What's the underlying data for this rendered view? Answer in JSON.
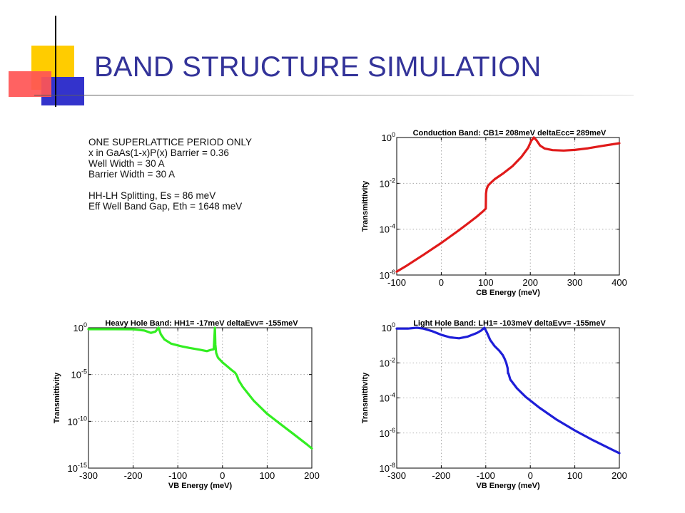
{
  "slide": {
    "title": "BAND STRUCTURE SIMULATION",
    "info_lines": [
      "ONE SUPERLATTICE PERIOD ONLY",
      "x in GaAs(1-x)P(x) Barrier = 0.36",
      "Well Width = 30 A",
      "Barrier Width = 30 A",
      "",
      "HH-LH Splitting, Es = 86 meV",
      "Eff Well Band Gap, Eth = 1648 meV"
    ]
  },
  "chart_data": [
    {
      "type": "line",
      "title": "Conduction Band: CB1= 208meV  deltaEcc= 289meV",
      "xlabel": "CB Energy (meV)",
      "ylabel": "Transmittivity",
      "xlim": [
        -100,
        400
      ],
      "xticks": [
        -100,
        0,
        100,
        200,
        300,
        400
      ],
      "y_log_exponent_range": [
        -6,
        0
      ],
      "yticks": [
        {
          "base": "10",
          "exp": "0"
        },
        {
          "base": "10",
          "exp": "-2"
        },
        {
          "base": "10",
          "exp": "-4"
        },
        {
          "base": "10",
          "exp": "-6"
        }
      ],
      "grid": true,
      "color": "#e01a1a",
      "series": [
        {
          "x": [
            -100,
            -80,
            -60,
            -40,
            -20,
            0,
            20,
            40,
            60,
            80,
            95,
            100,
            100.5,
            102,
            105,
            110,
            120,
            140,
            160,
            180,
            195,
            202,
            208,
            214,
            222,
            232,
            250,
            275,
            300,
            330,
            360,
            400
          ],
          "log10_y": [
            -5.85,
            -5.62,
            -5.37,
            -5.12,
            -4.86,
            -4.6,
            -4.32,
            -4.04,
            -3.75,
            -3.45,
            -3.2,
            -3.1,
            -2.45,
            -2.25,
            -2.1,
            -2.0,
            -1.82,
            -1.55,
            -1.25,
            -0.85,
            -0.45,
            -0.15,
            0.0,
            -0.12,
            -0.35,
            -0.48,
            -0.55,
            -0.57,
            -0.54,
            -0.47,
            -0.37,
            -0.25
          ]
        }
      ]
    },
    {
      "type": "line",
      "title": "Heavy Hole Band: HH1= -17meV  deltaEvv= -155meV",
      "xlabel": "VB Energy (meV)",
      "ylabel": "Transmittivity",
      "xlim": [
        -300,
        200
      ],
      "xticks": [
        -300,
        -200,
        -100,
        0,
        100,
        200
      ],
      "y_log_exponent_range": [
        -15,
        0
      ],
      "yticks": [
        {
          "base": "10",
          "exp": "0"
        },
        {
          "base": "10",
          "exp": "-5"
        },
        {
          "base": "10",
          "exp": "-10"
        },
        {
          "base": "10",
          "exp": "-15"
        }
      ],
      "grid": true,
      "color": "#33ee22",
      "series": [
        {
          "x": [
            -300,
            -240,
            -200,
            -175,
            -160,
            -150,
            -143,
            -138,
            -130,
            -115,
            -95,
            -75,
            -50,
            -35,
            -25,
            -19.5,
            -17,
            -16,
            -14,
            -10,
            0,
            10,
            20,
            28,
            31,
            33,
            36,
            45,
            70,
            100,
            130,
            160,
            190,
            200
          ],
          "log10_y": [
            -0.15,
            -0.15,
            -0.16,
            -0.3,
            -0.55,
            -0.4,
            0.0,
            -0.7,
            -1.25,
            -1.7,
            -1.95,
            -2.15,
            -2.35,
            -2.5,
            -2.35,
            -2.3,
            0.0,
            -1.8,
            -2.7,
            -3.2,
            -3.7,
            -4.1,
            -4.5,
            -4.8,
            -5.0,
            -5.2,
            -5.6,
            -6.3,
            -7.8,
            -9.2,
            -10.3,
            -11.4,
            -12.5,
            -12.9
          ]
        }
      ]
    },
    {
      "type": "line",
      "title": "Light Hole Band: LH1= -103meV  deltaEvv= -155meV",
      "xlabel": "VB Energy (meV)",
      "ylabel": "Transmittivity",
      "xlim": [
        -300,
        200
      ],
      "xticks": [
        -300,
        -200,
        -100,
        0,
        100,
        200
      ],
      "y_log_exponent_range": [
        -8,
        0
      ],
      "yticks": [
        {
          "base": "10",
          "exp": "0"
        },
        {
          "base": "10",
          "exp": "-2"
        },
        {
          "base": "10",
          "exp": "-4"
        },
        {
          "base": "10",
          "exp": "-6"
        },
        {
          "base": "10",
          "exp": "-8"
        }
      ],
      "grid": true,
      "color": "#1e1ed8",
      "series": [
        {
          "x": [
            -300,
            -275,
            -255,
            -240,
            -220,
            -200,
            -180,
            -160,
            -140,
            -120,
            -110,
            -103,
            -97,
            -90,
            -80,
            -70,
            -62,
            -58,
            -54,
            -51,
            -50,
            -49,
            -45,
            -30,
            -10,
            20,
            60,
            100,
            140,
            180,
            200
          ],
          "log10_y": [
            -0.05,
            -0.05,
            0.0,
            -0.05,
            -0.2,
            -0.4,
            -0.55,
            -0.6,
            -0.5,
            -0.3,
            -0.15,
            0.0,
            -0.3,
            -0.7,
            -1.05,
            -1.3,
            -1.55,
            -1.75,
            -2.0,
            -2.3,
            -2.6,
            -2.6,
            -2.95,
            -3.45,
            -3.95,
            -4.55,
            -5.25,
            -5.85,
            -6.4,
            -6.9,
            -7.15
          ]
        }
      ]
    }
  ]
}
